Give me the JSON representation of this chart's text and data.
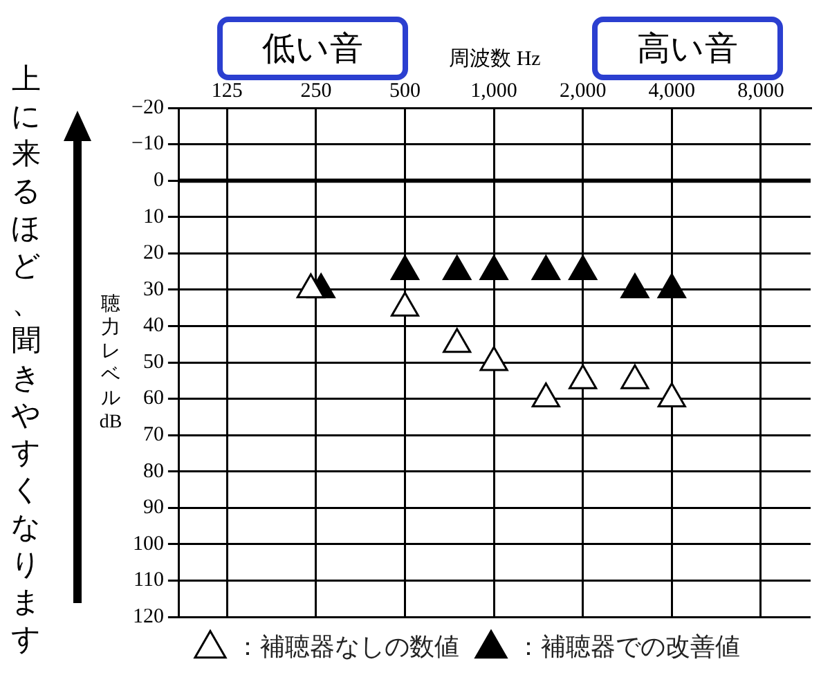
{
  "chart_data": {
    "type": "scatter",
    "xlabel": "周波数 Hz",
    "ylabel": "聴力レベル dB",
    "annotations": [
      "低い音",
      "高い音",
      "上に来るほど、聞きやすくなります"
    ],
    "xlim": [
      86,
      11800
    ],
    "log": "x",
    "xticks": [
      125,
      250,
      500,
      {
        "value": 1000,
        "label": "1,000"
      },
      {
        "value": 2000,
        "label": "2,000"
      },
      {
        "value": 4000,
        "label": "4,000"
      },
      {
        "value": 8000,
        "label": "8,000"
      }
    ],
    "ylim": [
      120,
      -20
    ],
    "yticks": [
      {
        "value": -20,
        "label": "−20"
      },
      {
        "value": -10,
        "label": "−10"
      },
      0,
      10,
      20,
      30,
      40,
      50,
      60,
      70,
      80,
      90,
      100,
      110,
      120
    ],
    "grid": true,
    "legend": "bottom",
    "marker": "triangle",
    "ref_lines": [
      {
        "axis": "y",
        "value": 0,
        "color": "#000000"
      }
    ],
    "series": [
      {
        "name": "：補聴器なしの数値",
        "color": "#ffffff",
        "x": [
          240,
          500,
          750,
          1000,
          1500,
          2000,
          3000,
          4000
        ],
        "values": [
          30,
          35,
          45,
          50,
          60,
          55,
          55,
          60
        ]
      },
      {
        "name": "：補聴器での改善値",
        "color": "#000000",
        "x": [
          260,
          500,
          750,
          1000,
          1500,
          2000,
          3000,
          4000
        ],
        "values": [
          30,
          25,
          25,
          25,
          25,
          25,
          30,
          30
        ]
      }
    ]
  }
}
